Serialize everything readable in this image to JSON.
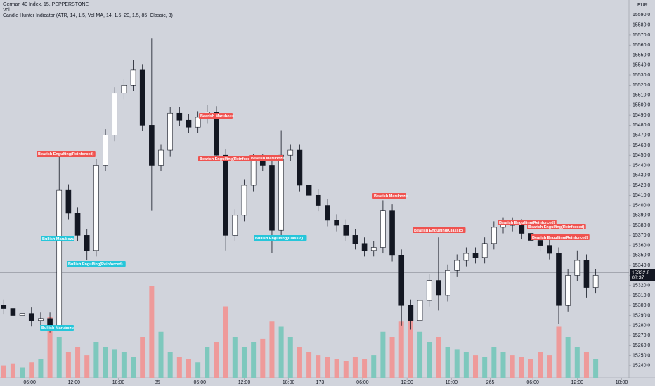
{
  "chart_data": {
    "type": "candlestick",
    "title": "German 40 Index, 15, PEPPERSTONE",
    "subtitle": "Vol",
    "indicator": "Candle Hunter Indicator (ATR, 14, 1.5, Vol MA, 14, 1.5, 20, 1.5, 85, Classic, 3)",
    "currency": "EUR",
    "x": [
      2,
      7,
      12,
      17,
      22,
      27,
      32,
      37,
      42,
      47,
      52,
      57,
      62,
      67,
      72,
      77,
      82,
      87,
      92,
      97,
      102,
      107,
      112,
      117,
      122,
      127,
      132,
      137,
      142,
      147,
      152,
      157,
      162,
      167,
      172,
      177,
      182,
      187,
      192,
      197,
      202,
      207,
      212,
      217,
      222,
      227,
      232,
      237,
      242,
      247,
      252,
      257,
      262,
      267,
      272,
      277,
      282,
      287,
      292,
      297,
      302,
      307,
      312,
      317,
      322
    ],
    "open": [
      15300,
      15297,
      15290,
      15292,
      15285,
      15287,
      15279,
      15415,
      15392,
      15370,
      15355,
      15440,
      15470,
      15512,
      15520,
      15535,
      15480,
      15440,
      15455,
      15492,
      15485,
      15478,
      15488,
      15493,
      15450,
      15370,
      15390,
      15420,
      15445,
      15440,
      15375,
      15450,
      15455,
      15420,
      15410,
      15400,
      15385,
      15380,
      15370,
      15362,
      15355,
      15358,
      15395,
      15350,
      15300,
      15285,
      15305,
      15325,
      15310,
      15335,
      15345,
      15352,
      15348,
      15362,
      15378,
      15382,
      15380,
      15372,
      15365,
      15360,
      15352,
      15300,
      15330,
      15345,
      15318
    ],
    "high": [
      15306,
      15303,
      15298,
      15298,
      15293,
      15293,
      15448,
      15421,
      15398,
      15376,
      15446,
      15476,
      15518,
      15526,
      15545,
      15541,
      15567,
      15461,
      15498,
      15498,
      15491,
      15494,
      15500,
      15499,
      15456,
      15396,
      15426,
      15451,
      15451,
      15446,
      15475,
      15461,
      15461,
      15426,
      15416,
      15406,
      15391,
      15386,
      15376,
      15368,
      15364,
      15405,
      15401,
      15356,
      15306,
      15311,
      15331,
      15368,
      15341,
      15351,
      15358,
      15358,
      15368,
      15384,
      15388,
      15388,
      15386,
      15378,
      15366,
      15368,
      15358,
      15336,
      15355,
      15351,
      15336
    ],
    "low": [
      15291,
      15284,
      15284,
      15279,
      15279,
      15273,
      15275,
      15386,
      15364,
      15345,
      15349,
      15434,
      15464,
      15506,
      15514,
      15474,
      15395,
      15434,
      15449,
      15479,
      15472,
      15472,
      15482,
      15444,
      15355,
      15364,
      15384,
      15414,
      15434,
      15352,
      15369,
      15444,
      15414,
      15404,
      15394,
      15379,
      15374,
      15364,
      15356,
      15349,
      15349,
      15352,
      15344,
      15280,
      15276,
      15279,
      15299,
      15295,
      15304,
      15329,
      15339,
      15342,
      15342,
      15356,
      15372,
      15374,
      15366,
      15359,
      15354,
      15346,
      15282,
      15294,
      15324,
      15308,
      15312
    ],
    "close": [
      15297,
      15290,
      15292,
      15285,
      15287,
      15279,
      15415,
      15392,
      15370,
      15355,
      15440,
      15470,
      15512,
      15520,
      15535,
      15480,
      15440,
      15455,
      15492,
      15485,
      15478,
      15488,
      15493,
      15450,
      15370,
      15390,
      15420,
      15445,
      15440,
      15375,
      15450,
      15455,
      15420,
      15410,
      15400,
      15385,
      15380,
      15370,
      15362,
      15355,
      15358,
      15395,
      15350,
      15300,
      15285,
      15305,
      15325,
      15310,
      15335,
      15345,
      15352,
      15348,
      15362,
      15378,
      15382,
      15380,
      15372,
      15365,
      15360,
      15352,
      15300,
      15330,
      15345,
      15318,
      15330
    ],
    "volume": [
      12,
      14,
      10,
      15,
      18,
      60,
      40,
      25,
      30,
      22,
      35,
      30,
      28,
      25,
      20,
      40,
      90,
      45,
      25,
      20,
      18,
      15,
      30,
      35,
      70,
      40,
      30,
      35,
      38,
      55,
      50,
      40,
      30,
      25,
      22,
      20,
      18,
      16,
      20,
      18,
      22,
      45,
      40,
      55,
      60,
      45,
      35,
      40,
      30,
      28,
      25,
      22,
      20,
      30,
      25,
      22,
      20,
      18,
      25,
      22,
      50,
      40,
      30,
      25,
      18
    ],
    "up_color": "#ffffff",
    "down_color": "#131722",
    "volume_up_color": "#7ec8bd",
    "volume_down_color": "#ee9a9a",
    "xlim": [
      0,
      340
    ],
    "xticks": [
      {
        "value": 16,
        "label": "06:00"
      },
      {
        "value": 40,
        "label": "12:00"
      },
      {
        "value": 64,
        "label": "18:00"
      },
      85,
      {
        "value": 108,
        "label": "06:00"
      },
      {
        "value": 132,
        "label": "12:00"
      },
      {
        "value": 156,
        "label": "18:00"
      },
      173,
      {
        "value": 196,
        "label": "06:00"
      },
      {
        "value": 220,
        "label": "12:00"
      },
      {
        "value": 244,
        "label": "18:00"
      },
      265,
      {
        "value": 288,
        "label": "06:00"
      },
      {
        "value": 312,
        "label": "12:00"
      },
      {
        "value": 336,
        "label": "18:00"
      }
    ],
    "ylim": [
      15228,
      15605
    ],
    "yticks": [
      {
        "value": 15240,
        "label": "15240.0"
      },
      {
        "value": 15250,
        "label": "15250.0"
      },
      {
        "value": 15260,
        "label": "15260.0"
      },
      {
        "value": 15270,
        "label": "15270.0"
      },
      {
        "value": 15280,
        "label": "15280.0"
      },
      {
        "value": 15290,
        "label": "15290.0"
      },
      {
        "value": 15300,
        "label": "15300.0"
      },
      {
        "value": 15310,
        "label": "15310.0"
      },
      {
        "value": 15320,
        "label": "15320.0"
      },
      {
        "value": 15330,
        "label": "15330.0"
      },
      {
        "value": 15340,
        "label": "15340.0"
      },
      {
        "value": 15350,
        "label": "15350.0"
      },
      {
        "value": 15360,
        "label": "15360.0"
      },
      {
        "value": 15370,
        "label": "15370.0"
      },
      {
        "value": 15380,
        "label": "15380.0"
      },
      {
        "value": 15390,
        "label": "15390.0"
      },
      {
        "value": 15400,
        "label": "15400.0"
      },
      {
        "value": 15410,
        "label": "15410.0"
      },
      {
        "value": 15420,
        "label": "15420.0"
      },
      {
        "value": 15430,
        "label": "15430.0"
      },
      {
        "value": 15440,
        "label": "15440.0"
      },
      {
        "value": 15450,
        "label": "15450.0"
      },
      {
        "value": 15460,
        "label": "15460.0"
      },
      {
        "value": 15470,
        "label": "15470.0"
      },
      {
        "value": 15480,
        "label": "15480.0"
      },
      {
        "value": 15490,
        "label": "15490.0"
      },
      {
        "value": 15500,
        "label": "15500.0"
      },
      {
        "value": 15510,
        "label": "15510.0"
      },
      {
        "value": 15520,
        "label": "15520.0"
      },
      {
        "value": 15530,
        "label": "15530.0"
      },
      {
        "value": 15540,
        "label": "15540.0"
      },
      {
        "value": 15550,
        "label": "15550.0"
      },
      {
        "value": 15560,
        "label": "15560.0"
      },
      {
        "value": 15570,
        "label": "15570.0"
      },
      {
        "value": 15580,
        "label": "15580.0"
      },
      {
        "value": 15590,
        "label": "15590.0"
      }
    ],
    "last_price": {
      "value": 15332.8,
      "label": "15332.8"
    },
    "countdown": "08:37",
    "annotations": [
      {
        "text": "Bearish Engulfing(Reinforced)",
        "color": "#ef5350"
      },
      {
        "text": "Bullish Marubozu",
        "color": "#26c6da"
      },
      {
        "text": "Bullish Engulfing(Reinforced)",
        "color": "#26c6da"
      },
      {
        "text": "Bullish Marubozu",
        "color": "#26c6da"
      },
      {
        "text": "Bearish Marubozu",
        "color": "#ef5350"
      },
      {
        "text": "Bearish Engulfing(Reinforced)",
        "color": "#ef5350"
      },
      {
        "text": "Bearish Marubozu",
        "color": "#ef5350"
      },
      {
        "text": "Bullish Engulfing(Classic)",
        "color": "#26c6da"
      },
      {
        "text": "Bearish Marubozu",
        "color": "#ef5350"
      },
      {
        "text": "Bearish Engulfing(Classic)",
        "color": "#ef5350"
      },
      {
        "text": "Bearish Engulfing(Reinforced)",
        "color": "#ef5350"
      },
      {
        "text": "Bearish Engulfing(Reinforced)",
        "color": "#ef5350"
      },
      {
        "text": "Bearish Engulfing(Reinforced)",
        "color": "#ef5350"
      }
    ]
  }
}
